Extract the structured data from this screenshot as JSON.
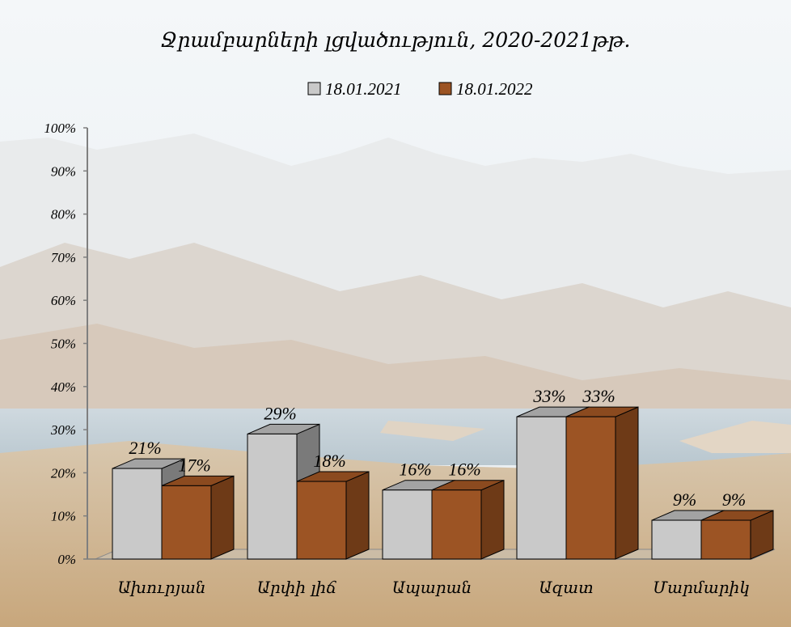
{
  "chart_data": {
    "type": "bar",
    "title": "Ջրամբարների լցվածություն,  2020-2021թթ.",
    "categories": [
      "Ախուրյան",
      "Արփի լիճ",
      "Ապարան",
      "Ազատ",
      "Մարմարիկ"
    ],
    "series": [
      {
        "name": "18.01.2021",
        "values": [
          21,
          29,
          16,
          33,
          9
        ],
        "labels": [
          "21%",
          "29%",
          "16%",
          "33%",
          "9%"
        ]
      },
      {
        "name": "18.01.2022",
        "values": [
          17,
          18,
          16,
          33,
          9
        ],
        "labels": [
          "17%",
          "18%",
          "16%",
          "33%",
          "9%"
        ]
      }
    ],
    "yticks": [
      "0%",
      "10%",
      "20%",
      "30%",
      "40%",
      "50%",
      "60%",
      "70%",
      "80%",
      "90%",
      "100%"
    ],
    "ylim": [
      0,
      100
    ],
    "legend_position": "top-center",
    "grid": false,
    "style": "3d-clustered-column",
    "colors": {
      "18.01.2021": "#c9c9c9",
      "18.01.2022": "#9c5424"
    }
  }
}
